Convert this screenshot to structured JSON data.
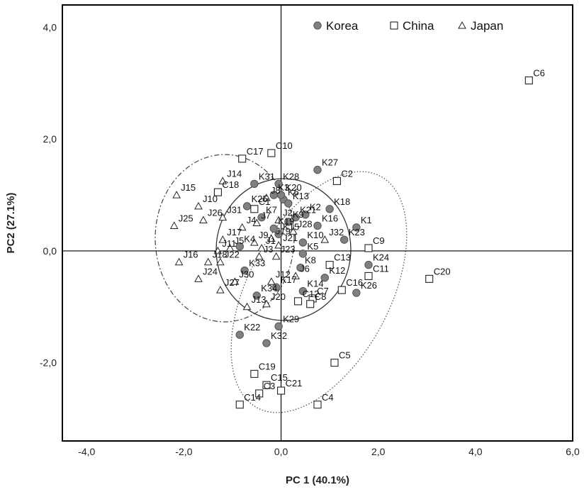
{
  "chart_data": {
    "type": "scatter",
    "xlabel": "PC 1 (40.1%)",
    "ylabel": "PC2 (27.1%)",
    "xlim": [
      -4.5,
      6.0
    ],
    "ylim": [
      -3.4,
      4.4
    ],
    "x_ticks": [
      {
        "value": -4,
        "label": "-4,0"
      },
      {
        "value": -2,
        "label": "-2,0"
      },
      {
        "value": 0,
        "label": "0,0"
      },
      {
        "value": 2,
        "label": "2,0"
      },
      {
        "value": 4,
        "label": "4,0"
      },
      {
        "value": 6,
        "label": "6,0"
      }
    ],
    "y_ticks": [
      {
        "value": 4,
        "label": "4,0"
      },
      {
        "value": 2,
        "label": "2,0"
      },
      {
        "value": 0,
        "label": "0,0"
      },
      {
        "value": -2,
        "label": "-2,0"
      }
    ],
    "grid": false,
    "reference_lines": {
      "x": 0,
      "y": 0
    },
    "legend_position": "top-center",
    "series": [
      {
        "name": "Korea",
        "marker": "circle",
        "color": "#808080",
        "points": [
          {
            "label": "K1",
            "x": 1.55,
            "y": 0.42
          },
          {
            "label": "K2",
            "x": 0.5,
            "y": 0.65
          },
          {
            "label": "K3",
            "x": -0.15,
            "y": 1.0
          },
          {
            "label": "K4",
            "x": -0.85,
            "y": 0.08
          },
          {
            "label": "K5",
            "x": 0.45,
            "y": -0.05
          },
          {
            "label": "K6",
            "x": 0.05,
            "y": 0.92
          },
          {
            "label": "K7",
            "x": -0.4,
            "y": 0.6
          },
          {
            "label": "K8",
            "x": 0.4,
            "y": -0.3
          },
          {
            "label": "K9",
            "x": 0.15,
            "y": 0.52
          },
          {
            "label": "K10",
            "x": 0.45,
            "y": 0.15
          },
          {
            "label": "K12",
            "x": 0.9,
            "y": -0.48
          },
          {
            "label": "K13",
            "x": 0.15,
            "y": 0.85
          },
          {
            "label": "K14",
            "x": 0.45,
            "y": -0.72
          },
          {
            "label": "K15",
            "x": -0.05,
            "y": 0.3
          },
          {
            "label": "K16",
            "x": 0.75,
            "y": 0.45
          },
          {
            "label": "K17",
            "x": -0.1,
            "y": -0.65
          },
          {
            "label": "K18",
            "x": 1.0,
            "y": 0.75
          },
          {
            "label": "K19",
            "x": -0.15,
            "y": 0.4
          },
          {
            "label": "K20",
            "x": 0.0,
            "y": 1.0
          },
          {
            "label": "K21",
            "x": 0.3,
            "y": 0.6
          },
          {
            "label": "K22",
            "x": -0.85,
            "y": -1.5
          },
          {
            "label": "K23",
            "x": 1.3,
            "y": 0.2
          },
          {
            "label": "K24",
            "x": 1.8,
            "y": -0.25
          },
          {
            "label": "K25",
            "x": -0.7,
            "y": 0.8
          },
          {
            "label": "K26",
            "x": 1.55,
            "y": -0.75
          },
          {
            "label": "K27",
            "x": 0.75,
            "y": 1.45
          },
          {
            "label": "K28",
            "x": -0.05,
            "y": 1.2
          },
          {
            "label": "K29",
            "x": -0.05,
            "y": -1.35
          },
          {
            "label": "K31",
            "x": -0.55,
            "y": 1.2
          },
          {
            "label": "K32",
            "x": -0.3,
            "y": -1.65
          },
          {
            "label": "K33",
            "x": -0.75,
            "y": -0.35
          },
          {
            "label": "K34",
            "x": -0.5,
            "y": -0.8
          }
        ]
      },
      {
        "name": "China",
        "marker": "square",
        "color": "#ffffff",
        "points": [
          {
            "label": "C1",
            "x": -0.55,
            "y": 0.75
          },
          {
            "label": "C2",
            "x": 1.15,
            "y": 1.25
          },
          {
            "label": "C3",
            "x": -0.45,
            "y": -2.55
          },
          {
            "label": "C4",
            "x": 0.75,
            "y": -2.75
          },
          {
            "label": "C5",
            "x": 1.1,
            "y": -2.0
          },
          {
            "label": "C6",
            "x": 5.1,
            "y": 3.05
          },
          {
            "label": "C7",
            "x": 0.65,
            "y": -0.85
          },
          {
            "label": "C8",
            "x": 0.6,
            "y": -0.95
          },
          {
            "label": "C9",
            "x": 1.8,
            "y": 0.05
          },
          {
            "label": "C10",
            "x": -0.2,
            "y": 1.75
          },
          {
            "label": "C11",
            "x": 1.8,
            "y": -0.45
          },
          {
            "label": "C12",
            "x": 0.35,
            "y": -0.9
          },
          {
            "label": "C13",
            "x": 1.0,
            "y": -0.25
          },
          {
            "label": "C14",
            "x": -0.85,
            "y": -2.75
          },
          {
            "label": "C15",
            "x": -0.3,
            "y": -2.4
          },
          {
            "label": "C16",
            "x": 1.25,
            "y": -0.7
          },
          {
            "label": "C17",
            "x": -0.8,
            "y": 1.65
          },
          {
            "label": "C18",
            "x": -1.3,
            "y": 1.05
          },
          {
            "label": "C19",
            "x": -0.55,
            "y": -2.2
          },
          {
            "label": "C20",
            "x": 3.05,
            "y": -0.5
          },
          {
            "label": "C21",
            "x": 0.0,
            "y": -2.5
          }
        ]
      },
      {
        "name": "Japan",
        "marker": "triangle",
        "color": "#ffffff",
        "points": [
          {
            "label": "J1",
            "x": -0.4,
            "y": 0.05
          },
          {
            "label": "J2",
            "x": -0.05,
            "y": 0.55
          },
          {
            "label": "J3",
            "x": -0.45,
            "y": -0.1
          },
          {
            "label": "J4",
            "x": -0.8,
            "y": 0.42
          },
          {
            "label": "J5",
            "x": -1.05,
            "y": 0.05
          },
          {
            "label": "J6",
            "x": 0.3,
            "y": -0.45
          },
          {
            "label": "J7",
            "x": -0.5,
            "y": 0.5
          },
          {
            "label": "J8",
            "x": -0.3,
            "y": 0.95
          },
          {
            "label": "J9",
            "x": -0.55,
            "y": 0.15
          },
          {
            "label": "J10",
            "x": -1.7,
            "y": 0.8
          },
          {
            "label": "J11",
            "x": -1.3,
            "y": 0.0
          },
          {
            "label": "J12",
            "x": -0.2,
            "y": -0.55
          },
          {
            "label": "J13",
            "x": -0.7,
            "y": -1.0
          },
          {
            "label": "J14",
            "x": -1.2,
            "y": 1.25
          },
          {
            "label": "J15",
            "x": -2.15,
            "y": 1.0
          },
          {
            "label": "J16",
            "x": -2.1,
            "y": -0.2
          },
          {
            "label": "J17",
            "x": -1.2,
            "y": 0.2
          },
          {
            "label": "J18",
            "x": -1.5,
            "y": -0.2
          },
          {
            "label": "J19",
            "x": -0.2,
            "y": 0.22
          },
          {
            "label": "J20",
            "x": -0.3,
            "y": -0.95
          },
          {
            "label": "J21",
            "x": -0.05,
            "y": 0.1
          },
          {
            "label": "J22",
            "x": -1.25,
            "y": -0.2
          },
          {
            "label": "J23",
            "x": -0.1,
            "y": -0.1
          },
          {
            "label": "J24",
            "x": -1.7,
            "y": -0.5
          },
          {
            "label": "J25",
            "x": -2.2,
            "y": 0.45
          },
          {
            "label": "J26",
            "x": -1.6,
            "y": 0.55
          },
          {
            "label": "J27",
            "x": -1.25,
            "y": -0.7
          },
          {
            "label": "J28",
            "x": 0.25,
            "y": 0.35
          },
          {
            "label": "J30",
            "x": -0.95,
            "y": -0.55
          },
          {
            "label": "J31",
            "x": -1.2,
            "y": 0.6
          },
          {
            "label": "J32",
            "x": 0.9,
            "y": 0.2
          }
        ]
      }
    ]
  }
}
